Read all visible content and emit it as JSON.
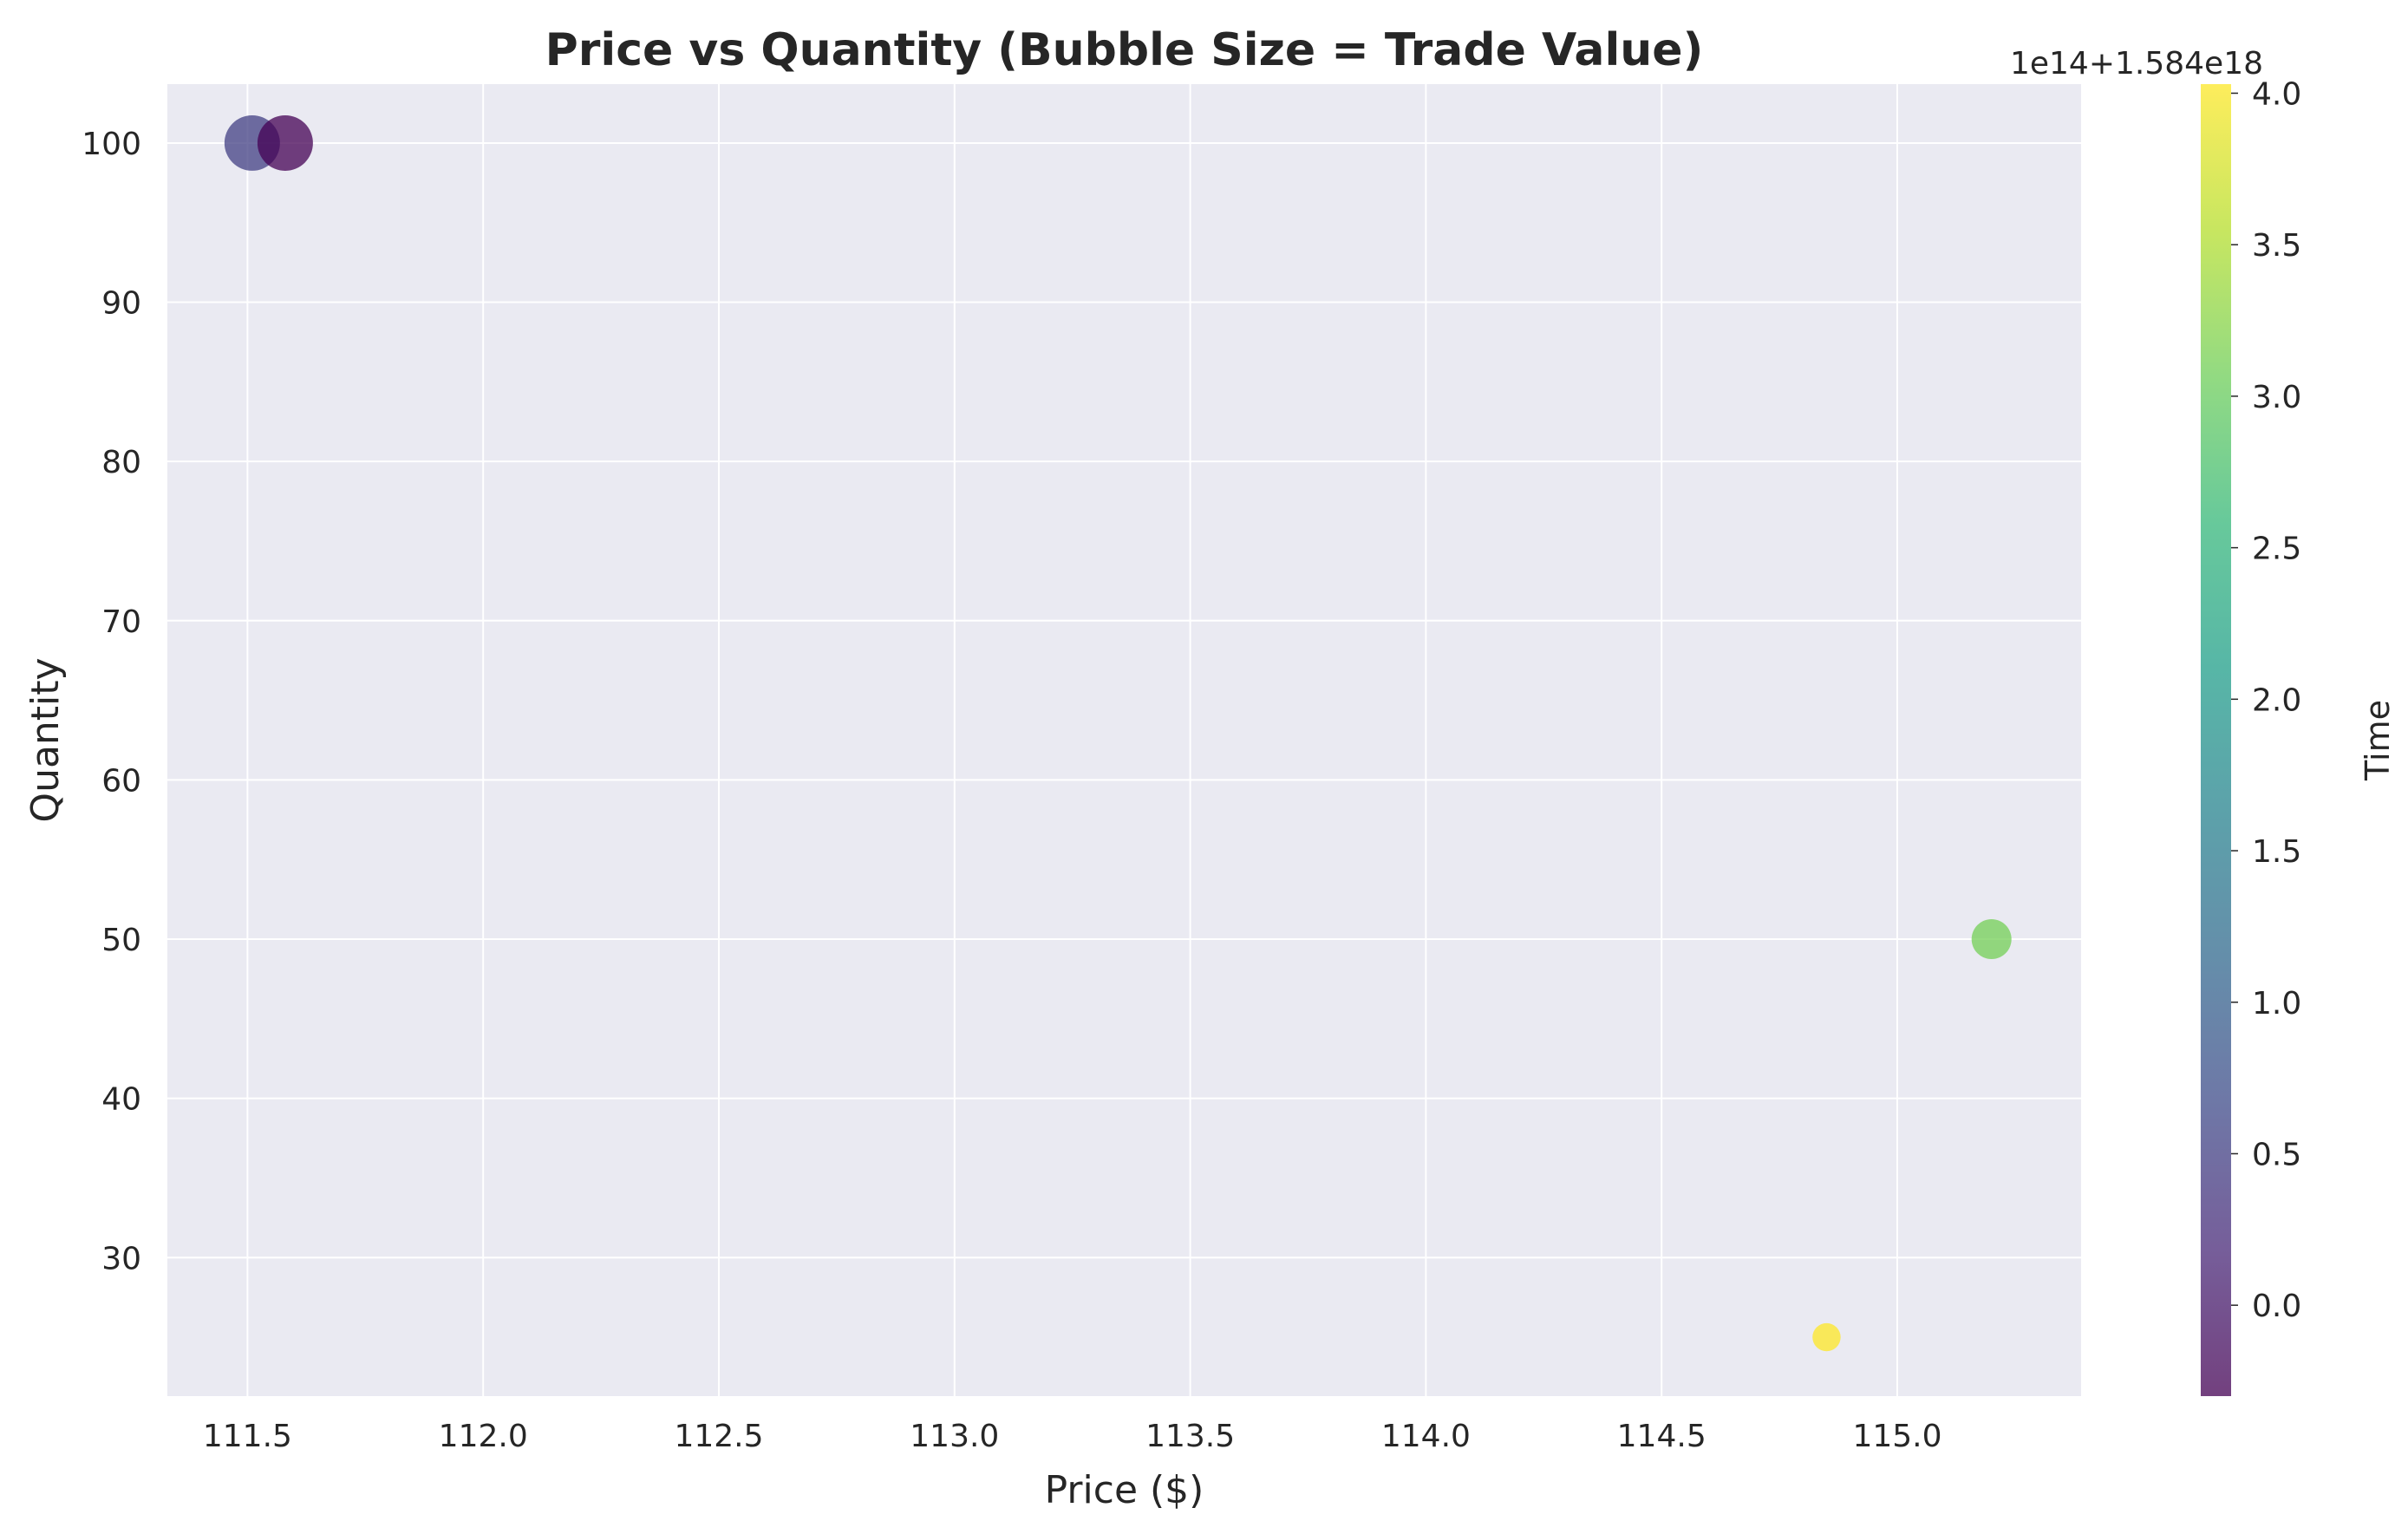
{
  "chart_data": {
    "type": "scatter",
    "title": "Price vs Quantity (Bubble Size = Trade Value)",
    "xlabel": "Price ($)",
    "ylabel": "Quantity",
    "xlim": [
      111.33,
      115.39
    ],
    "ylim": [
      21.3,
      103.7
    ],
    "xticks": [
      111.5,
      112.0,
      112.5,
      113.0,
      113.5,
      114.0,
      114.5,
      115.0
    ],
    "yticks": [
      30,
      40,
      50,
      60,
      70,
      80,
      90,
      100
    ],
    "grid": true,
    "points": [
      {
        "price": 111.51,
        "quantity": 100,
        "trade_value": 11151,
        "time": 0.5
      },
      {
        "price": 111.58,
        "quantity": 100,
        "trade_value": 11158,
        "time": -0.3
      },
      {
        "price": 115.2,
        "quantity": 50,
        "trade_value": 5760,
        "time": 3.1
      },
      {
        "price": 114.85,
        "quantity": 25,
        "trade_value": 2871,
        "time": 4.03
      }
    ],
    "colorbar": {
      "label": "Time",
      "colormap": "viridis",
      "range": [
        -0.3,
        4.03
      ],
      "ticks": [
        0.0,
        0.5,
        1.0,
        1.5,
        2.0,
        2.5,
        3.0,
        3.5,
        4.0
      ],
      "offset_text": "1e14+1.584e18"
    },
    "colors": {
      "axes_background": "#eaeaf2",
      "grid": "#ffffff",
      "marker_alpha": 0.75
    }
  }
}
